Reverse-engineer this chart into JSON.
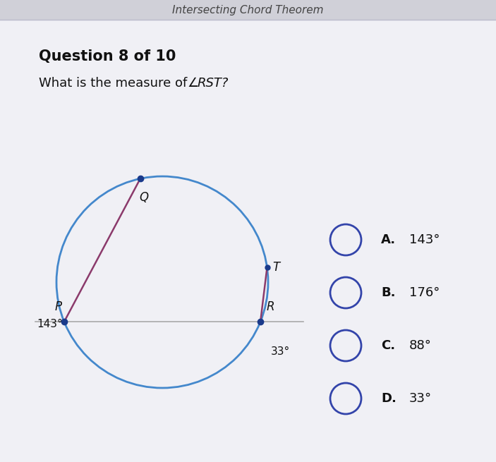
{
  "bg_color": "#f0f0f5",
  "header_bg": "#d0d0d8",
  "header_text": "Intersecting Chord Theorem",
  "question_label": "Question 8 of 10",
  "question_text": "What is the measure of ∠RST?",
  "arc_label_143": "143°",
  "arc_label_33": "33°",
  "line_color": "#aaaaaa",
  "chord_color": "#8b3a6b",
  "circle_color": "#4488cc",
  "dot_color": "#1a3a8b",
  "choices": [
    "A.",
    "143°",
    "B.",
    "176°",
    "C.",
    "88°",
    "D.",
    "33°"
  ],
  "choice_circle_color": "#3344aa",
  "text_color": "#111111"
}
